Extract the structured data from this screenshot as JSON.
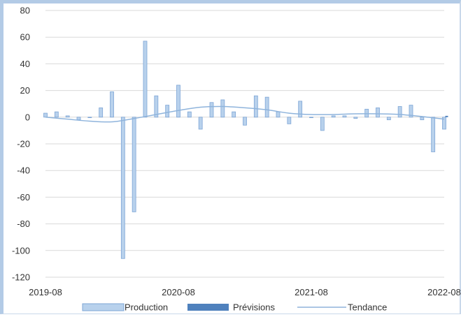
{
  "chart_data": {
    "type": "bar",
    "title": "",
    "xlabel": "",
    "ylabel": "",
    "ylim": [
      -120,
      80
    ],
    "y_ticks": [
      "80",
      "60",
      "40",
      "20",
      "0",
      "-20",
      "-40",
      "-60",
      "-80",
      "-100",
      "-120"
    ],
    "x_tick_labels": [
      {
        "label": "2019-08",
        "month_index": 0
      },
      {
        "label": "2020-08",
        "month_index": 12
      },
      {
        "label": "2021-08",
        "month_index": 24
      },
      {
        "label": "2022-08",
        "month_index": 36
      }
    ],
    "grid": true,
    "legend_position": "bottom",
    "series": [
      {
        "name": "Production",
        "type": "bar",
        "color": "#b8d1ec",
        "edge_color": "#7ea6d6",
        "x": [
          "2019-08",
          "2019-09",
          "2019-10",
          "2019-11",
          "2019-12",
          "2020-01",
          "2020-02",
          "2020-03",
          "2020-04",
          "2020-05",
          "2020-06",
          "2020-07",
          "2020-08",
          "2020-09",
          "2020-10",
          "2020-11",
          "2020-12",
          "2021-01",
          "2021-02",
          "2021-03",
          "2021-04",
          "2021-05",
          "2021-06",
          "2021-07",
          "2021-08",
          "2021-09",
          "2021-10",
          "2021-11",
          "2021-12",
          "2022-01",
          "2022-02",
          "2022-03",
          "2022-04",
          "2022-05",
          "2022-06",
          "2022-07",
          "2022-08"
        ],
        "values": [
          3,
          4,
          1,
          -2,
          0,
          7,
          19,
          -106,
          -71,
          57,
          16,
          9,
          24,
          4,
          -9,
          11,
          13,
          4,
          -6,
          16,
          15,
          4,
          -5,
          12,
          0,
          -10,
          1,
          1,
          -1,
          6,
          7,
          -2,
          8,
          9,
          -2,
          -26,
          -9
        ]
      },
      {
        "name": "Prévisions",
        "type": "bar",
        "color": "#4f81bd",
        "x": [
          "2022-08"
        ],
        "values": [
          1
        ]
      },
      {
        "name": "Tendance",
        "type": "line",
        "color": "#8fb4dc",
        "x": [
          "2019-08",
          "2019-10",
          "2019-12",
          "2020-02",
          "2020-04",
          "2020-06",
          "2020-08",
          "2020-10",
          "2020-12",
          "2021-02",
          "2021-04",
          "2021-06",
          "2021-08",
          "2021-10",
          "2021-12",
          "2022-02",
          "2022-04",
          "2022-06",
          "2022-08"
        ],
        "values": [
          0,
          -1.5,
          -3,
          -3.5,
          -1,
          2,
          5,
          7.5,
          8,
          7,
          5.5,
          3,
          2,
          2,
          2.5,
          2.5,
          2,
          0.5,
          -1.5
        ]
      }
    ]
  }
}
